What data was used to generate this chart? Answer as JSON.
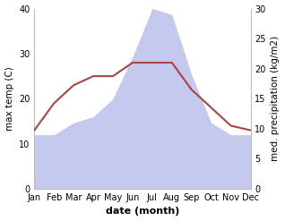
{
  "months": [
    "Jan",
    "Feb",
    "Mar",
    "Apr",
    "May",
    "Jun",
    "Jul",
    "Aug",
    "Sep",
    "Oct",
    "Nov",
    "Dec"
  ],
  "temp": [
    13,
    19,
    23,
    25,
    25,
    28,
    28,
    28,
    22,
    18,
    14,
    13
  ],
  "precip": [
    9,
    9,
    11,
    12,
    15,
    22,
    30,
    29,
    19,
    11,
    9,
    9
  ],
  "temp_color": "#aa4444",
  "precip_color": "#b0b8e8",
  "left_ylabel": "max temp (C)",
  "right_ylabel": "med. precipitation (kg/m2)",
  "xlabel": "date (month)",
  "left_ylim": [
    0,
    40
  ],
  "right_ylim": [
    0,
    30
  ],
  "left_yticks": [
    0,
    10,
    20,
    30,
    40
  ],
  "right_yticks": [
    0,
    5,
    10,
    15,
    20,
    25,
    30
  ],
  "temp_linewidth": 1.5,
  "figsize": [
    3.18,
    2.47
  ],
  "dpi": 100
}
